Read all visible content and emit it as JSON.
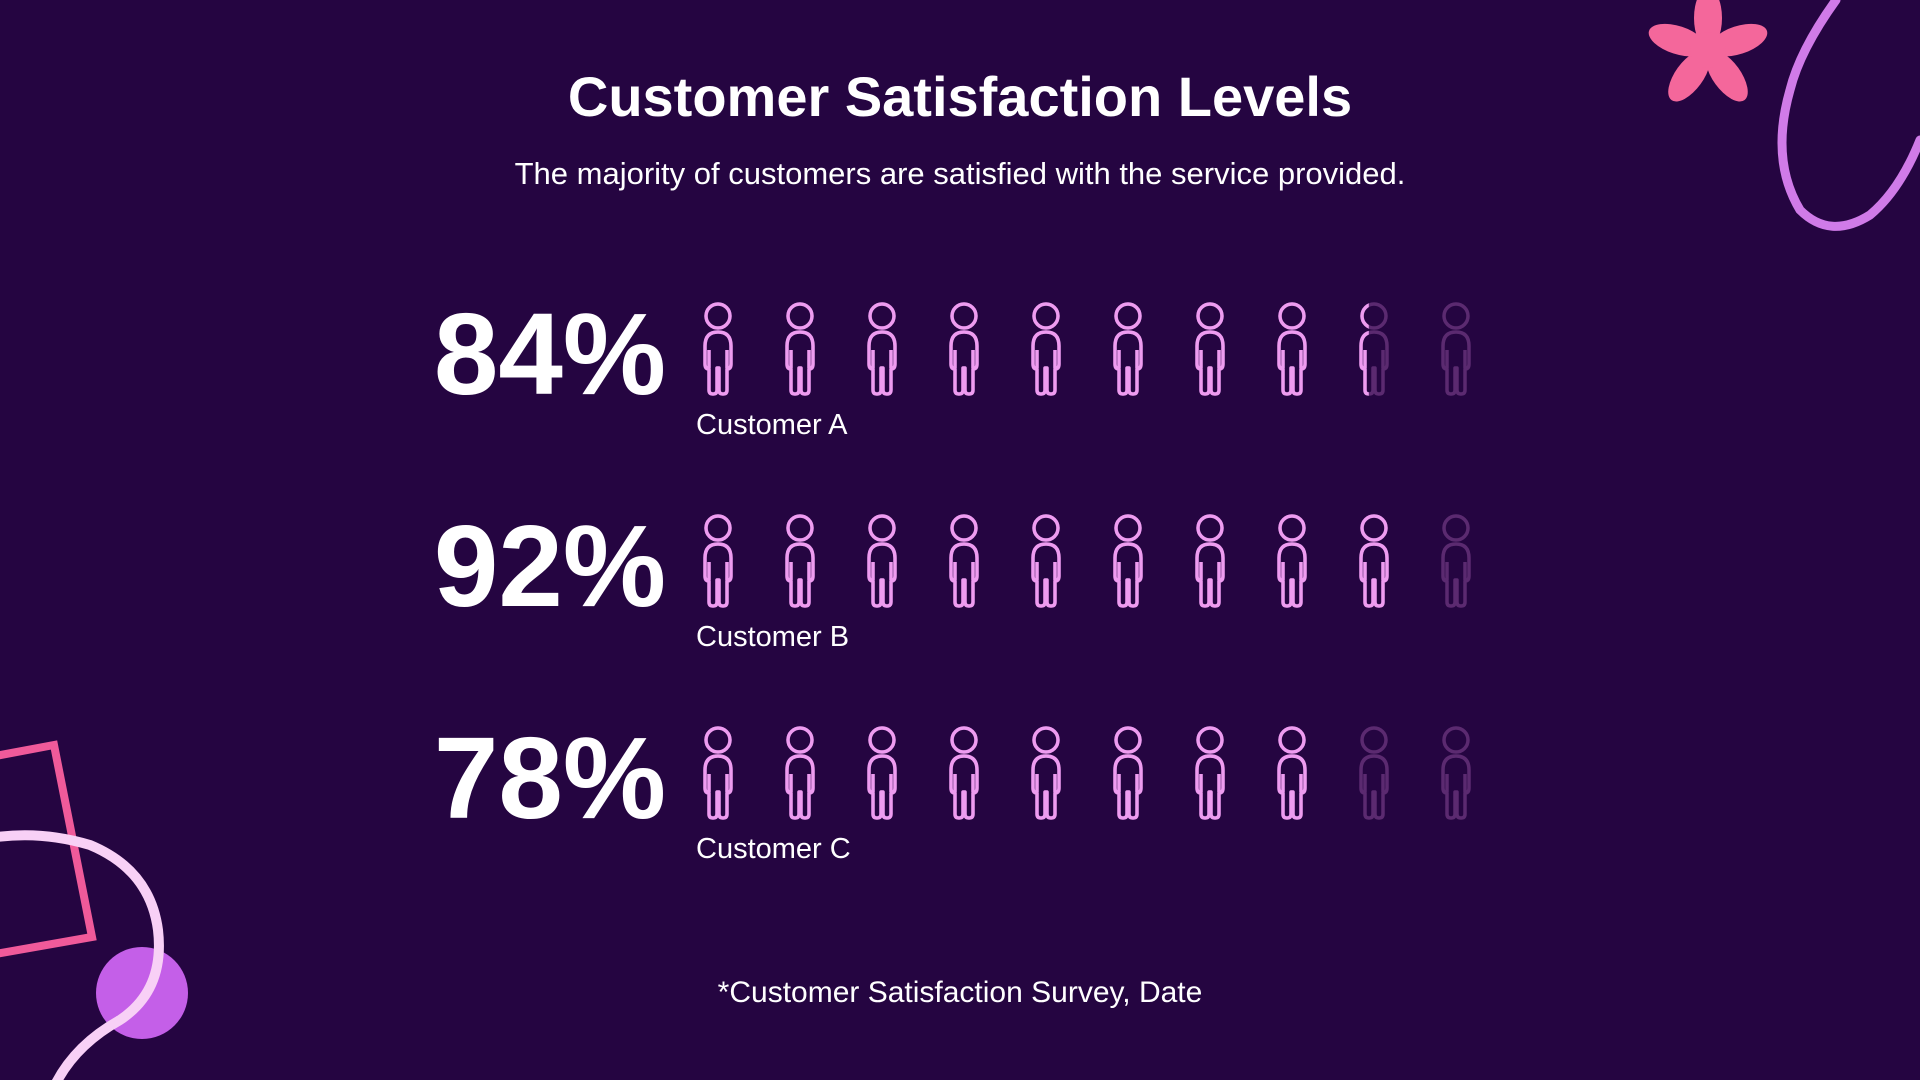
{
  "chart_data": {
    "type": "pictograph",
    "title": "Customer Satisfaction Levels",
    "subtitle": "The majority of customers are satisfied with the service provided.",
    "categories": [
      "Customer A",
      "Customer B",
      "Customer C"
    ],
    "values": [
      84,
      92,
      78
    ],
    "value_labels": [
      "84%",
      "92%",
      "78%"
    ],
    "xlim": [
      0,
      100
    ],
    "color": "#ee9cf0",
    "empty_color": "#5b2a70",
    "footnote": "*Customer Satisfaction Survey, Date"
  }
}
